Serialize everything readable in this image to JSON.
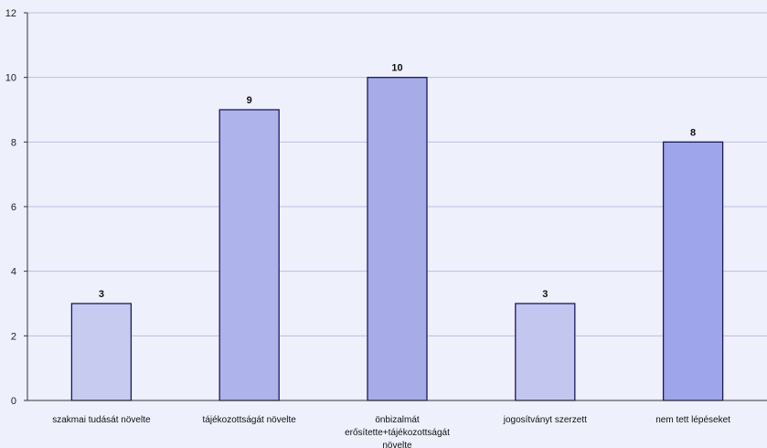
{
  "chart_data": {
    "type": "bar",
    "title": "",
    "xlabel": "",
    "ylabel": "",
    "categories": [
      [
        "szakmai tudását növelte"
      ],
      [
        "tájékozottságát növelte"
      ],
      [
        "önbizalmát",
        "erősítette+tájékozottságát",
        "növelte"
      ],
      [
        "jogosítványt szerzett"
      ],
      [
        "nem tett lépéseket"
      ]
    ],
    "values": [
      3,
      9,
      10,
      3,
      8
    ],
    "ylim": [
      0,
      12
    ],
    "yticks": [
      0,
      2,
      4,
      6,
      8,
      10,
      12
    ],
    "grid": true,
    "bar_colors": [
      "#c7cbf0",
      "#aeb3ec",
      "#a7ace9",
      "#c3c7f0",
      "#9fa5ea"
    ],
    "show_data_labels": true
  }
}
